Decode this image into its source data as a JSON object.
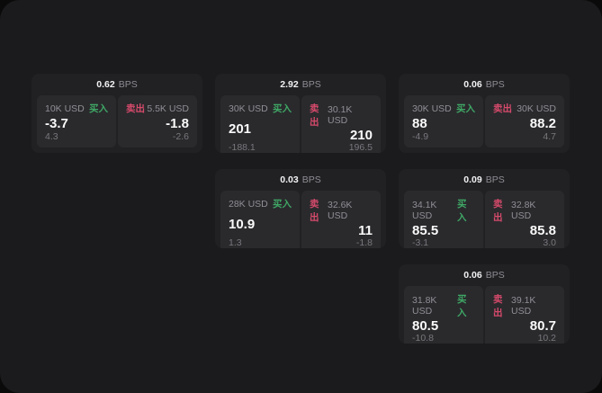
{
  "labels": {
    "buy": "买入",
    "sell": "卖出",
    "bps_unit": "BPS"
  },
  "colors": {
    "background": "#1b1b1d",
    "card": "#212124",
    "panel": "#2a2a2d",
    "buy_green": "#3fa765",
    "sell_red": "#d64a6b",
    "text_primary": "#fafafa",
    "text_secondary": "#8f8f95"
  },
  "cards": [
    {
      "col": 1,
      "row": 1,
      "bps": "0.62",
      "buy": {
        "amount": "10K USD",
        "price": "-3.7",
        "delta": "4.3"
      },
      "sell": {
        "amount": "5.5K USD",
        "price": "-1.8",
        "delta": "-2.6"
      }
    },
    {
      "col": 2,
      "row": 1,
      "bps": "2.92",
      "buy": {
        "amount": "30K USD",
        "price": "201",
        "delta": "-188.1"
      },
      "sell": {
        "amount": "30.1K USD",
        "price": "210",
        "delta": "196.5"
      }
    },
    {
      "col": 3,
      "row": 1,
      "bps": "0.06",
      "buy": {
        "amount": "30K USD",
        "price": "88",
        "delta": "-4.9"
      },
      "sell": {
        "amount": "30K USD",
        "price": "88.2",
        "delta": "4.7"
      }
    },
    {
      "col": 2,
      "row": 2,
      "bps": "0.03",
      "buy": {
        "amount": "28K USD",
        "price": "10.9",
        "delta": "1.3"
      },
      "sell": {
        "amount": "32.6K USD",
        "price": "11",
        "delta": "-1.8"
      }
    },
    {
      "col": 3,
      "row": 2,
      "bps": "0.09",
      "buy": {
        "amount": "34.1K USD",
        "price": "85.5",
        "delta": "-3.1"
      },
      "sell": {
        "amount": "32.8K USD",
        "price": "85.8",
        "delta": "3.0"
      }
    },
    {
      "col": 3,
      "row": 3,
      "bps": "0.06",
      "buy": {
        "amount": "31.8K USD",
        "price": "80.5",
        "delta": "-10.8"
      },
      "sell": {
        "amount": "39.1K USD",
        "price": "80.7",
        "delta": "10.2"
      }
    }
  ]
}
